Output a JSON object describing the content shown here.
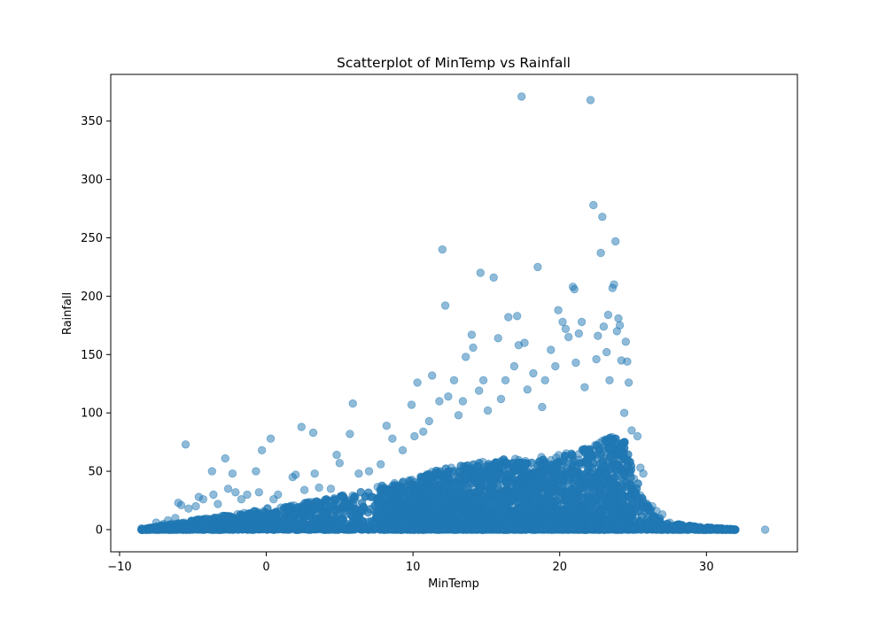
{
  "chart_data": {
    "type": "scatter",
    "title": "Scatterplot of MinTemp vs Rainfall",
    "xlabel": "MinTemp",
    "ylabel": "Rainfall",
    "xlim": [
      -10.6,
      36.2
    ],
    "ylim": [
      -19,
      390
    ],
    "xticks": [
      -10,
      0,
      10,
      20,
      30
    ],
    "yticks": [
      0,
      50,
      100,
      150,
      200,
      250,
      300,
      350
    ],
    "xtick_labels": [
      "−10",
      "0",
      "10",
      "20",
      "30"
    ],
    "ytick_labels": [
      "0",
      "50",
      "100",
      "150",
      "200",
      "250",
      "300",
      "350"
    ],
    "grid": false,
    "marker_color": "#1f77b4",
    "marker_opacity": 0.5,
    "dense_band": {
      "description_free_values": true,
      "envelope": [
        [
          -8.5,
          0
        ],
        [
          -7,
          4
        ],
        [
          -5,
          8
        ],
        [
          -3,
          12
        ],
        [
          -1,
          16
        ],
        [
          0,
          18
        ],
        [
          2,
          22
        ],
        [
          4,
          26
        ],
        [
          6,
          32
        ],
        [
          8,
          38
        ],
        [
          10,
          45
        ],
        [
          12,
          52
        ],
        [
          14,
          57
        ],
        [
          16,
          60
        ],
        [
          18,
          62
        ],
        [
          20,
          64
        ],
        [
          22,
          70
        ],
        [
          23.5,
          80
        ],
        [
          24.5,
          75
        ],
        [
          25.2,
          45
        ],
        [
          25.8,
          25
        ],
        [
          26.5,
          12
        ],
        [
          27.5,
          6
        ],
        [
          29,
          3
        ],
        [
          31,
          1
        ],
        [
          32,
          0
        ]
      ]
    },
    "points": [
      {
        "x": -8.5,
        "y": 1
      },
      {
        "x": -7.9,
        "y": 0
      },
      {
        "x": -7.5,
        "y": 6
      },
      {
        "x": -7.0,
        "y": 5
      },
      {
        "x": -6.7,
        "y": 8
      },
      {
        "x": -6.2,
        "y": 10
      },
      {
        "x": -6.0,
        "y": 23
      },
      {
        "x": -5.8,
        "y": 21
      },
      {
        "x": -5.5,
        "y": 73
      },
      {
        "x": -5.3,
        "y": 18
      },
      {
        "x": -4.8,
        "y": 20
      },
      {
        "x": -4.6,
        "y": 28
      },
      {
        "x": -4.3,
        "y": 26
      },
      {
        "x": -3.7,
        "y": 50
      },
      {
        "x": -3.6,
        "y": 30
      },
      {
        "x": -3.3,
        "y": 22
      },
      {
        "x": -2.8,
        "y": 61
      },
      {
        "x": -2.6,
        "y": 35
      },
      {
        "x": -2.3,
        "y": 48
      },
      {
        "x": -2.1,
        "y": 32
      },
      {
        "x": -1.7,
        "y": 26
      },
      {
        "x": -1.3,
        "y": 30
      },
      {
        "x": -0.7,
        "y": 50
      },
      {
        "x": -0.5,
        "y": 32
      },
      {
        "x": -0.3,
        "y": 68
      },
      {
        "x": 0.3,
        "y": 78
      },
      {
        "x": 0.5,
        "y": 26
      },
      {
        "x": 0.8,
        "y": 30
      },
      {
        "x": 1.8,
        "y": 45
      },
      {
        "x": 2.0,
        "y": 47
      },
      {
        "x": 2.4,
        "y": 88
      },
      {
        "x": 2.6,
        "y": 34
      },
      {
        "x": 3.2,
        "y": 83
      },
      {
        "x": 3.3,
        "y": 48
      },
      {
        "x": 3.6,
        "y": 36
      },
      {
        "x": 4.4,
        "y": 35
      },
      {
        "x": 4.8,
        "y": 64
      },
      {
        "x": 5.0,
        "y": 57
      },
      {
        "x": 5.7,
        "y": 82
      },
      {
        "x": 5.9,
        "y": 108
      },
      {
        "x": 6.3,
        "y": 48
      },
      {
        "x": 7.0,
        "y": 50
      },
      {
        "x": 7.8,
        "y": 56
      },
      {
        "x": 8.2,
        "y": 89
      },
      {
        "x": 8.6,
        "y": 78
      },
      {
        "x": 9.3,
        "y": 68
      },
      {
        "x": 9.9,
        "y": 107
      },
      {
        "x": 10.3,
        "y": 126
      },
      {
        "x": 10.1,
        "y": 80
      },
      {
        "x": 10.7,
        "y": 84
      },
      {
        "x": 11.1,
        "y": 93
      },
      {
        "x": 11.3,
        "y": 132
      },
      {
        "x": 11.8,
        "y": 110
      },
      {
        "x": 12.0,
        "y": 240
      },
      {
        "x": 12.2,
        "y": 192
      },
      {
        "x": 12.4,
        "y": 114
      },
      {
        "x": 12.8,
        "y": 128
      },
      {
        "x": 13.1,
        "y": 98
      },
      {
        "x": 13.4,
        "y": 110
      },
      {
        "x": 13.6,
        "y": 148
      },
      {
        "x": 14.0,
        "y": 167
      },
      {
        "x": 14.1,
        "y": 156
      },
      {
        "x": 14.5,
        "y": 119
      },
      {
        "x": 14.6,
        "y": 220
      },
      {
        "x": 14.8,
        "y": 128
      },
      {
        "x": 15.1,
        "y": 102
      },
      {
        "x": 15.5,
        "y": 216
      },
      {
        "x": 15.8,
        "y": 164
      },
      {
        "x": 16.0,
        "y": 112
      },
      {
        "x": 16.3,
        "y": 128
      },
      {
        "x": 16.5,
        "y": 182
      },
      {
        "x": 16.9,
        "y": 140
      },
      {
        "x": 17.1,
        "y": 183
      },
      {
        "x": 17.2,
        "y": 158
      },
      {
        "x": 17.4,
        "y": 371
      },
      {
        "x": 17.6,
        "y": 160
      },
      {
        "x": 17.8,
        "y": 120
      },
      {
        "x": 18.2,
        "y": 134
      },
      {
        "x": 18.5,
        "y": 225
      },
      {
        "x": 18.8,
        "y": 105
      },
      {
        "x": 19.0,
        "y": 128
      },
      {
        "x": 19.4,
        "y": 154
      },
      {
        "x": 19.7,
        "y": 140
      },
      {
        "x": 19.9,
        "y": 188
      },
      {
        "x": 20.2,
        "y": 178
      },
      {
        "x": 20.4,
        "y": 172
      },
      {
        "x": 20.6,
        "y": 165
      },
      {
        "x": 20.9,
        "y": 208
      },
      {
        "x": 21.0,
        "y": 206
      },
      {
        "x": 21.1,
        "y": 143
      },
      {
        "x": 21.3,
        "y": 168
      },
      {
        "x": 21.5,
        "y": 178
      },
      {
        "x": 21.7,
        "y": 122
      },
      {
        "x": 22.1,
        "y": 368
      },
      {
        "x": 22.3,
        "y": 278
      },
      {
        "x": 22.5,
        "y": 146
      },
      {
        "x": 22.6,
        "y": 166
      },
      {
        "x": 22.8,
        "y": 237
      },
      {
        "x": 22.9,
        "y": 268
      },
      {
        "x": 23.0,
        "y": 174
      },
      {
        "x": 23.2,
        "y": 152
      },
      {
        "x": 23.3,
        "y": 184
      },
      {
        "x": 23.4,
        "y": 128
      },
      {
        "x": 23.6,
        "y": 207
      },
      {
        "x": 23.7,
        "y": 210
      },
      {
        "x": 23.8,
        "y": 247
      },
      {
        "x": 23.9,
        "y": 170
      },
      {
        "x": 24.0,
        "y": 181
      },
      {
        "x": 24.1,
        "y": 175
      },
      {
        "x": 24.2,
        "y": 145
      },
      {
        "x": 24.4,
        "y": 100
      },
      {
        "x": 24.5,
        "y": 161
      },
      {
        "x": 24.6,
        "y": 144
      },
      {
        "x": 24.7,
        "y": 126
      },
      {
        "x": 24.9,
        "y": 85
      },
      {
        "x": 25.3,
        "y": 80
      },
      {
        "x": 25.5,
        "y": 53
      },
      {
        "x": 25.7,
        "y": 48
      },
      {
        "x": 26.3,
        "y": 20
      },
      {
        "x": 26.6,
        "y": 16
      },
      {
        "x": 27.0,
        "y": 13
      },
      {
        "x": 27.5,
        "y": 6
      },
      {
        "x": 28.2,
        "y": 4
      },
      {
        "x": 28.8,
        "y": 2
      },
      {
        "x": 29.5,
        "y": 1
      },
      {
        "x": 30.2,
        "y": 0
      },
      {
        "x": 30.8,
        "y": 1
      },
      {
        "x": 31.3,
        "y": 0
      },
      {
        "x": 31.9,
        "y": 0
      },
      {
        "x": 34.0,
        "y": 0
      }
    ]
  }
}
